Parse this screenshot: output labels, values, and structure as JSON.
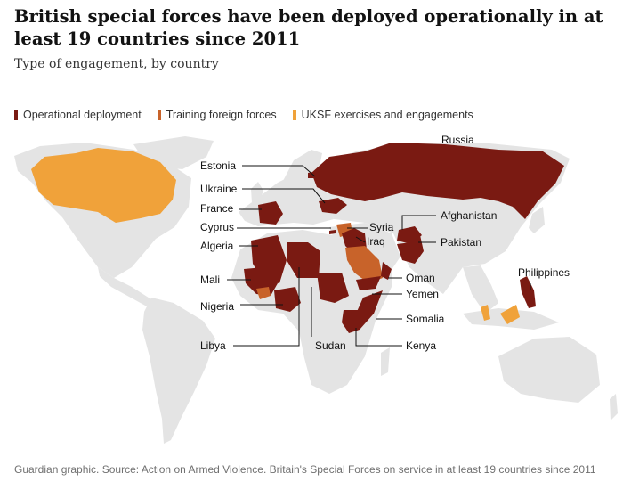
{
  "title": "British special forces have been deployed operationally in at least 19 countries since 2011",
  "subtitle": "Type of engagement, by country",
  "legend": [
    {
      "label": "Operational deployment",
      "color": "#7a1a12"
    },
    {
      "label": "Training foreign forces",
      "color": "#c8632a"
    },
    {
      "label": "UKSF exercises and engagements",
      "color": "#f0a23a"
    }
  ],
  "countries": [
    {
      "name": "Russia",
      "engagement": "Operational deployment"
    },
    {
      "name": "Estonia",
      "engagement": "Operational deployment"
    },
    {
      "name": "Ukraine",
      "engagement": "Operational deployment"
    },
    {
      "name": "France",
      "engagement": "Operational deployment"
    },
    {
      "name": "Cyprus",
      "engagement": "Operational deployment"
    },
    {
      "name": "Algeria",
      "engagement": "Operational deployment"
    },
    {
      "name": "Mali",
      "engagement": "Operational deployment"
    },
    {
      "name": "Nigeria",
      "engagement": "Operational deployment"
    },
    {
      "name": "Libya",
      "engagement": "Operational deployment"
    },
    {
      "name": "Sudan",
      "engagement": "Operational deployment"
    },
    {
      "name": "Syria",
      "engagement": "Operational deployment"
    },
    {
      "name": "Iraq",
      "engagement": "Operational deployment"
    },
    {
      "name": "Afghanistan",
      "engagement": "Operational deployment"
    },
    {
      "name": "Pakistan",
      "engagement": "Operational deployment"
    },
    {
      "name": "Oman",
      "engagement": "Operational deployment"
    },
    {
      "name": "Yemen",
      "engagement": "Operational deployment"
    },
    {
      "name": "Somalia",
      "engagement": "Operational deployment"
    },
    {
      "name": "Kenya",
      "engagement": "Operational deployment"
    },
    {
      "name": "Philippines",
      "engagement": "Operational deployment"
    }
  ],
  "source": "Guardian graphic. Source: Action on Armed Violence. Britain's Special Forces on service in at least 19 countries since 2011",
  "colors": {
    "land": "#e4e4e4",
    "operational": "#7a1a12",
    "training": "#c8632a",
    "exercises": "#f0a23a",
    "leader_line": "#121212"
  }
}
